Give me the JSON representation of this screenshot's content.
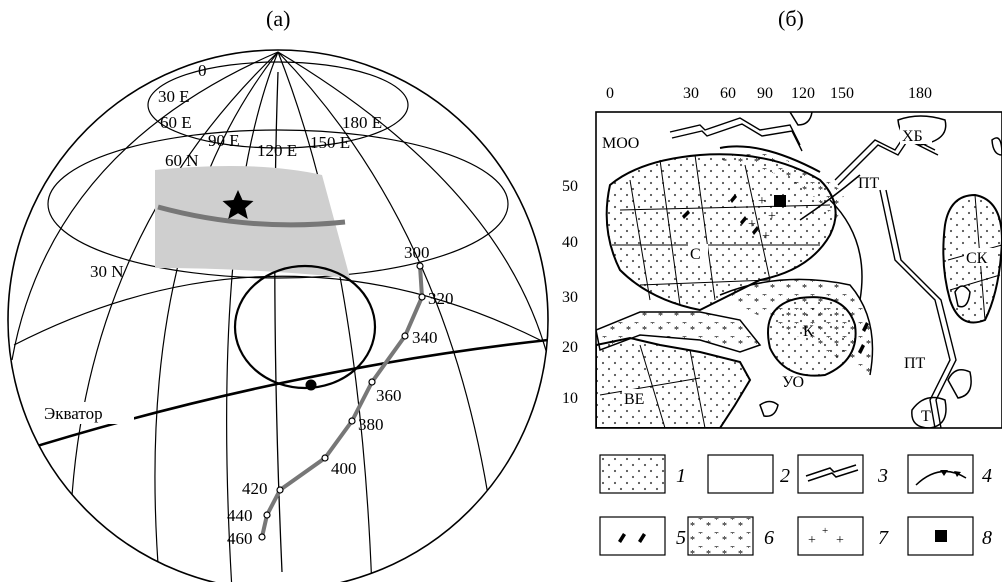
{
  "panel_a": {
    "label": "(a)",
    "lat_labels": [
      "60 N",
      "30 N"
    ],
    "lon_labels": [
      "0",
      "30 E",
      "60 E",
      "90 E",
      "120 E",
      "150 E",
      "180 E"
    ],
    "equator_label": "Экватор",
    "apwp_ages": [
      "300",
      "320",
      "340",
      "360",
      "380",
      "400",
      "420",
      "440",
      "460"
    ]
  },
  "panel_b": {
    "label": "(б)",
    "x_ticks": [
      "0",
      "30",
      "60",
      "90",
      "120",
      "150",
      "180"
    ],
    "y_ticks": [
      "50",
      "40",
      "30",
      "20",
      "10"
    ],
    "regions": [
      "МОО",
      "ХБ",
      "ПТ",
      "С",
      "СК",
      "К",
      "ПТ",
      "УО",
      "ВЕ",
      "Т"
    ],
    "legend": [
      "1",
      "2",
      "3",
      "4",
      "5",
      "6",
      "7",
      "8"
    ]
  }
}
